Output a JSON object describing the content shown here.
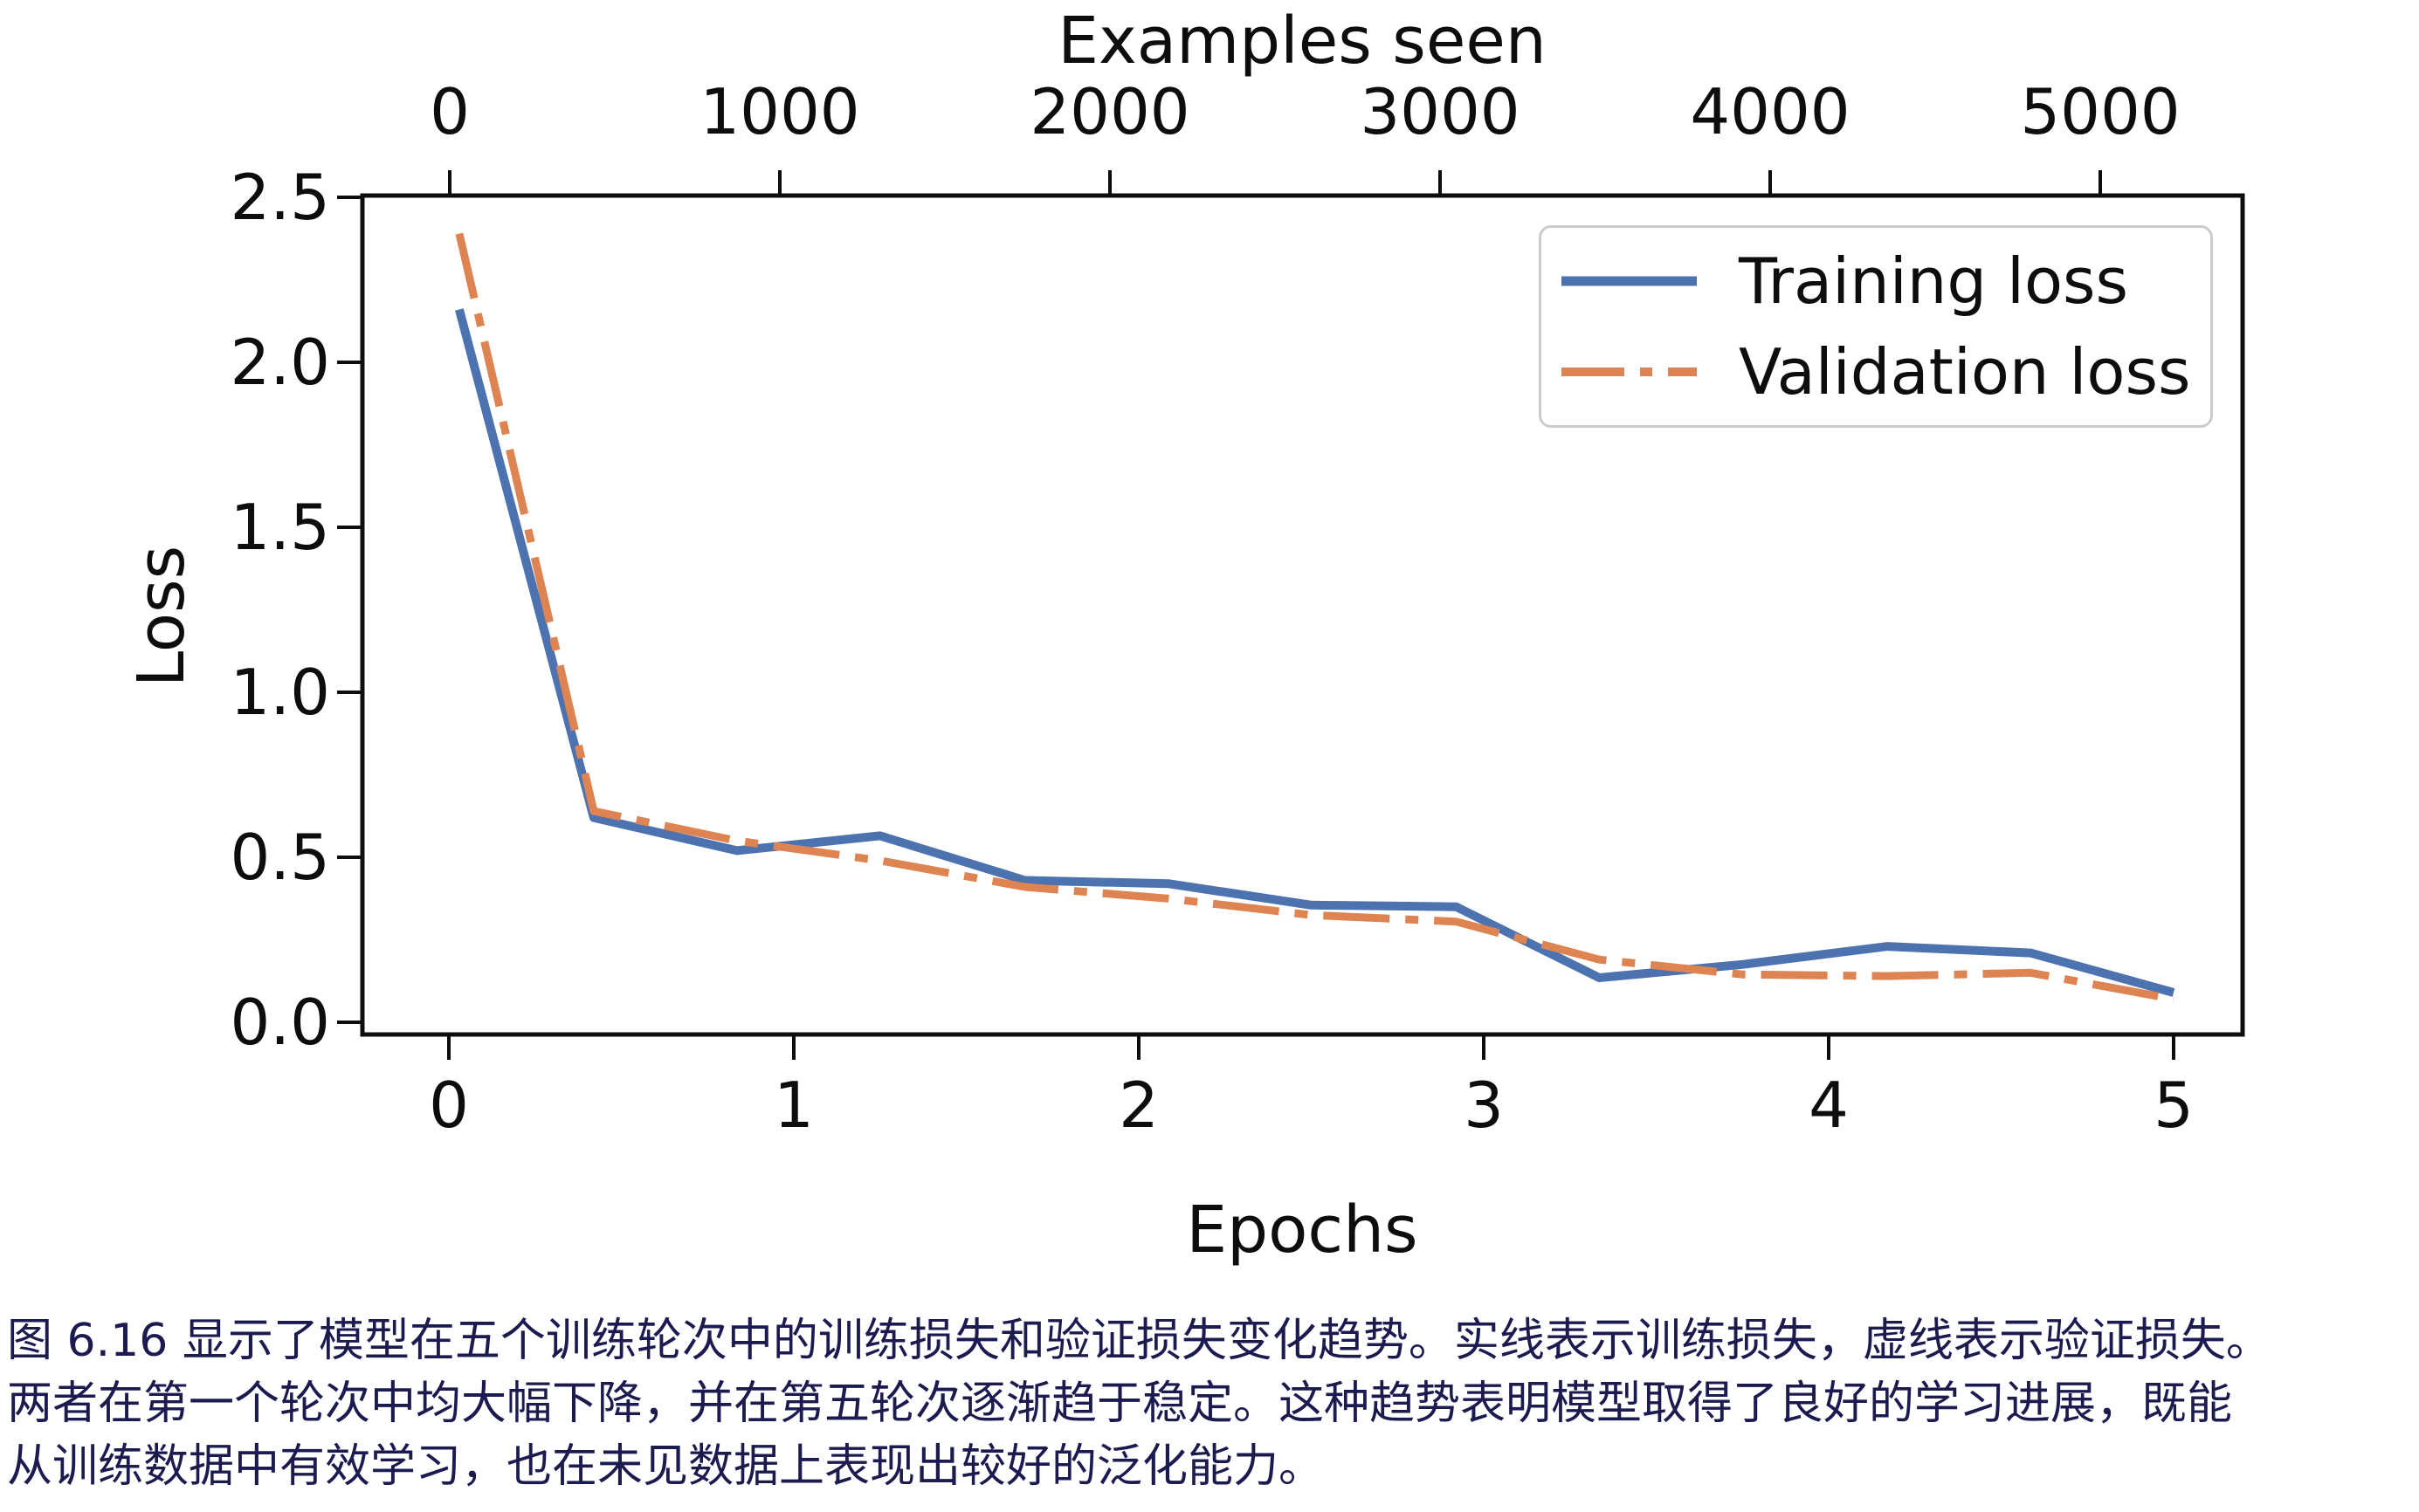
{
  "figure": {
    "caption_color": "#1c1b50",
    "caption_lines": [
      "图 6.16 显示了模型在五个训练轮次中的训练损失和验证损失变化趋势。实线表示训练损失，虚线表示验证损失。",
      "两者在第一个轮次中均大幅下降，并在第五轮次逐渐趋于稳定。这种趋势表明模型取得了良好的学习进展，既能",
      "从训练数据中有效学习，也在未见数据上表现出较好的泛化能力。"
    ]
  },
  "chart_data": {
    "type": "line",
    "title": "",
    "xlabel": "Epochs",
    "ylabel": "Loss",
    "top_axis": {
      "label": "Examples seen",
      "ticks": [
        0,
        1000,
        2000,
        3000,
        4000,
        5000
      ],
      "examples_per_epoch": 1045
    },
    "x_ticks": [
      0,
      1,
      2,
      3,
      4,
      5
    ],
    "y_ticks": [
      2.5,
      2.0,
      1.5,
      1.0,
      0.5,
      0.0
    ],
    "xlim": [
      -0.25,
      5.25
    ],
    "ylim": [
      -0.04,
      2.51
    ],
    "grid": false,
    "legend_position": "upper right",
    "axis_color": "#0d0d0d",
    "series": [
      {
        "name": "Training loss",
        "color": "#4c72b0",
        "line_style": "solid",
        "x": [
          0.03,
          0.42,
          0.835,
          1.25,
          1.67,
          2.085,
          2.5,
          2.92,
          3.335,
          3.75,
          4.17,
          4.585,
          5.0
        ],
        "y": [
          2.16,
          0.62,
          0.52,
          0.565,
          0.43,
          0.42,
          0.355,
          0.35,
          0.135,
          0.175,
          0.23,
          0.21,
          0.09
        ]
      },
      {
        "name": "Validation loss",
        "color": "#dd8452",
        "line_style": "dashdot",
        "x": [
          0.03,
          0.42,
          0.835,
          1.25,
          1.67,
          2.085,
          2.5,
          2.92,
          3.335,
          3.75,
          4.17,
          4.585,
          5.0
        ],
        "y": [
          2.39,
          0.64,
          0.55,
          0.49,
          0.41,
          0.375,
          0.325,
          0.305,
          0.19,
          0.145,
          0.14,
          0.15,
          0.07
        ]
      }
    ]
  }
}
